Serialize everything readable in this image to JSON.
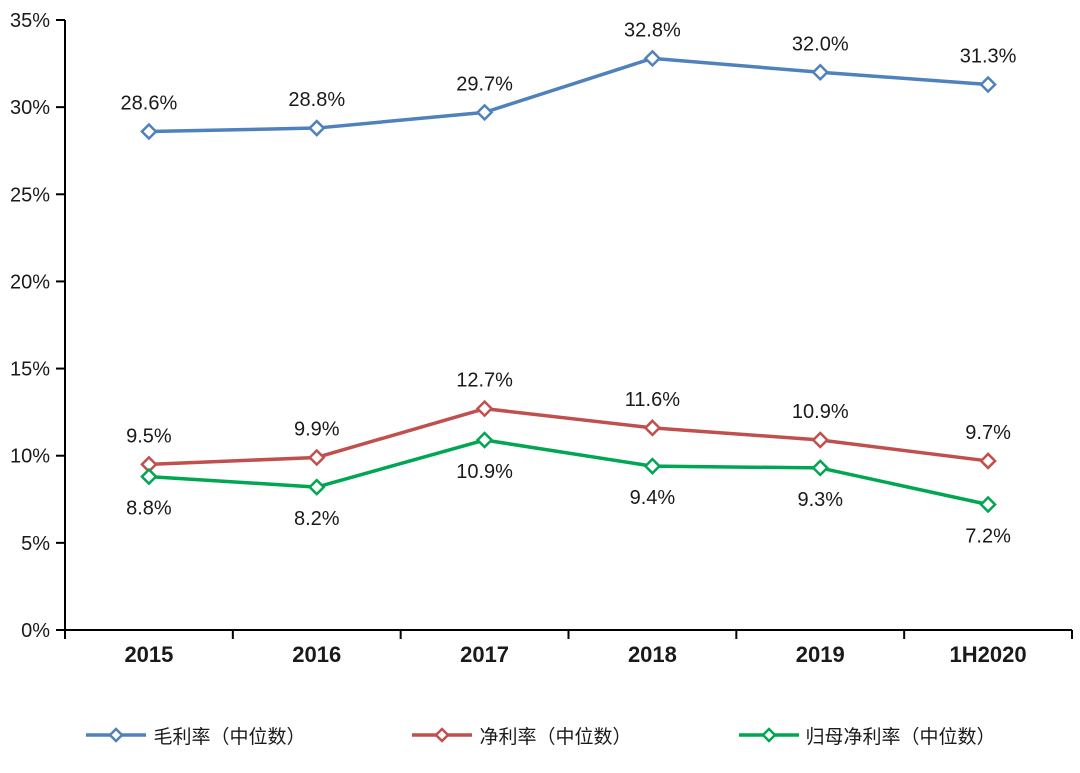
{
  "chart_data": {
    "type": "line",
    "title": "",
    "categories": [
      "2015",
      "2016",
      "2017",
      "2018",
      "2019",
      "1H2020"
    ],
    "series": [
      {
        "name": "毛利率（中位数）",
        "color": "#4f81bd",
        "values": [
          28.6,
          28.8,
          29.7,
          32.8,
          32.0,
          31.3
        ],
        "labels": [
          "28.6%",
          "28.8%",
          "29.7%",
          "32.8%",
          "32.0%",
          "31.3%"
        ],
        "label_position": "above"
      },
      {
        "name": "净利率（中位数）",
        "color": "#c0504d",
        "values": [
          9.5,
          9.9,
          12.7,
          11.6,
          10.9,
          9.7
        ],
        "labels": [
          "9.5%",
          "9.9%",
          "12.7%",
          "11.6%",
          "10.9%",
          "9.7%"
        ],
        "label_position": "above"
      },
      {
        "name": "归母净利率（中位数）",
        "color": "#00a651",
        "values": [
          8.8,
          8.2,
          10.9,
          9.4,
          9.3,
          7.2
        ],
        "labels": [
          "8.8%",
          "8.2%",
          "10.9%",
          "9.4%",
          "9.3%",
          "7.2%"
        ],
        "label_position": "below"
      }
    ],
    "ylim": [
      0,
      35
    ],
    "ytick_step": 5,
    "ytick_labels": [
      "0%",
      "5%",
      "10%",
      "15%",
      "20%",
      "25%",
      "30%",
      "35%"
    ],
    "grid": false,
    "legend_position": "bottom",
    "marker": "diamond",
    "text_color": "#1a1a1a",
    "axis_color": "#000000",
    "background": "#ffffff"
  }
}
